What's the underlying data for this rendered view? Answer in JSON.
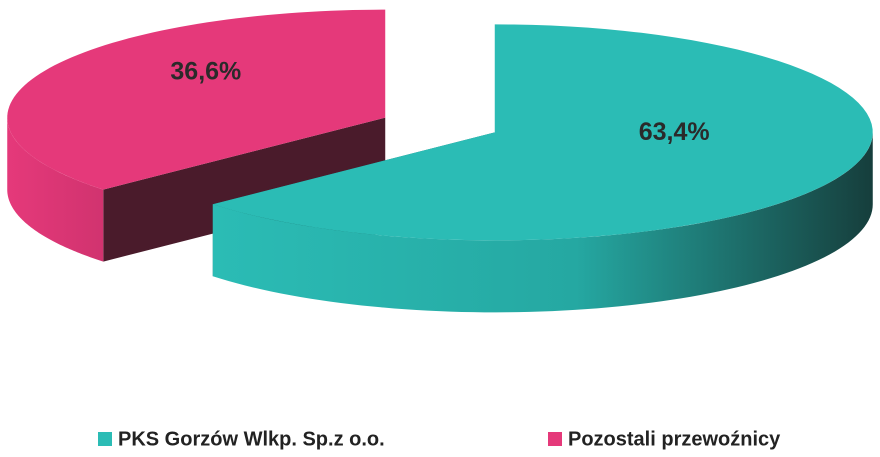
{
  "chart_data": {
    "type": "pie",
    "style": "3d-exploded",
    "categories": [
      "PKS Gorzów Wlkp. Sp.z o.o.",
      "Pozostali przewoźnicy"
    ],
    "values": [
      63.4,
      36.6
    ],
    "value_labels": [
      "63,4%",
      "36,6%"
    ],
    "colors": [
      "#2bbcb5",
      "#e5397a"
    ],
    "legend": "bottom"
  }
}
